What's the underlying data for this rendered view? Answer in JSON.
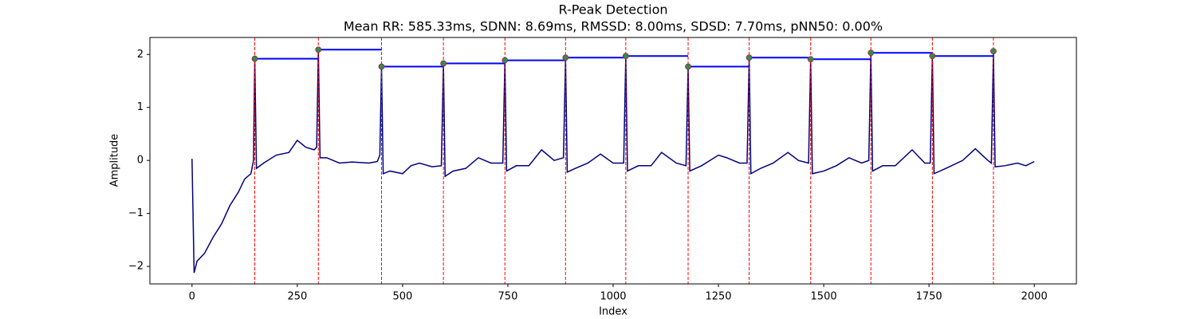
{
  "chart_data": {
    "type": "line",
    "title": "R-Peak Detection",
    "subtitle": "Mean RR: 585.33ms, SDNN: 8.69ms, RMSSD: 8.00ms, SDSD: 7.70ms, pNN50: 0.00%",
    "xlabel": "Index",
    "ylabel": "Amplitude",
    "xlim": [
      -100,
      2100
    ],
    "ylim": [
      -2.33,
      2.32
    ],
    "xticks": [
      0,
      250,
      500,
      750,
      1000,
      1250,
      1500,
      1750,
      2000
    ],
    "yticks": [
      {
        "value": -2,
        "label": "−2"
      },
      {
        "value": -1,
        "label": "−1"
      },
      0,
      1,
      2
    ],
    "signal": {
      "color": "#000080",
      "x": [
        0,
        5,
        12,
        30,
        50,
        70,
        90,
        110,
        125,
        140,
        146,
        149,
        153,
        170,
        200,
        230,
        250,
        270,
        290,
        296,
        300,
        304,
        320,
        350,
        380,
        420,
        440,
        446,
        450,
        454,
        470,
        500,
        520,
        540,
        570,
        592,
        597,
        601,
        620,
        650,
        680,
        710,
        738,
        743,
        747,
        770,
        800,
        830,
        860,
        882,
        887,
        891,
        910,
        940,
        970,
        1000,
        1025,
        1030,
        1034,
        1060,
        1090,
        1115,
        1150,
        1173,
        1178,
        1182,
        1210,
        1250,
        1270,
        1300,
        1318,
        1323,
        1327,
        1350,
        1380,
        1415,
        1440,
        1464,
        1469,
        1473,
        1500,
        1530,
        1560,
        1590,
        1607,
        1612,
        1616,
        1640,
        1670,
        1710,
        1740,
        1753,
        1758,
        1762,
        1790,
        1830,
        1860,
        1890,
        1898,
        1903,
        1907,
        1930,
        1960,
        1980,
        2000
      ],
      "y": [
        0.03,
        -2.12,
        -1.9,
        -1.75,
        -1.45,
        -1.2,
        -0.85,
        -0.6,
        -0.35,
        -0.25,
        0.0,
        1.92,
        -0.15,
        -0.05,
        0.1,
        0.15,
        0.38,
        0.25,
        0.2,
        0.25,
        2.09,
        0.05,
        0.05,
        -0.05,
        -0.03,
        -0.05,
        -0.02,
        0.1,
        1.77,
        -0.25,
        -0.2,
        -0.25,
        -0.1,
        -0.05,
        -0.12,
        -0.1,
        1.83,
        -0.3,
        -0.2,
        -0.15,
        0.05,
        -0.05,
        -0.05,
        1.89,
        -0.2,
        -0.1,
        -0.1,
        0.2,
        0.0,
        0.05,
        1.94,
        -0.22,
        -0.15,
        -0.05,
        0.12,
        -0.05,
        -0.05,
        1.97,
        -0.2,
        -0.1,
        -0.1,
        0.15,
        -0.05,
        -0.1,
        1.77,
        -0.2,
        -0.1,
        0.1,
        0.05,
        -0.05,
        -0.05,
        1.94,
        -0.25,
        -0.15,
        -0.05,
        0.15,
        0.0,
        -0.05,
        1.91,
        -0.25,
        -0.2,
        -0.1,
        0.05,
        -0.05,
        0.0,
        2.03,
        -0.2,
        -0.1,
        -0.1,
        0.2,
        -0.05,
        -0.05,
        1.97,
        -0.25,
        -0.15,
        0.0,
        0.22,
        0.0,
        -0.05,
        2.06,
        -0.12,
        -0.1,
        -0.05,
        -0.1,
        -0.02
      ]
    },
    "peaks": {
      "color": "#2e8b57",
      "x": [
        149,
        300,
        450,
        597,
        743,
        887,
        1030,
        1178,
        1323,
        1469,
        1612,
        1758,
        1903
      ],
      "y": [
        1.92,
        2.09,
        1.77,
        1.83,
        1.89,
        1.94,
        1.97,
        1.77,
        1.94,
        1.91,
        2.03,
        1.97,
        2.06
      ]
    },
    "peak_line_color": "#ff0000",
    "interval_color": "#0000ff"
  }
}
